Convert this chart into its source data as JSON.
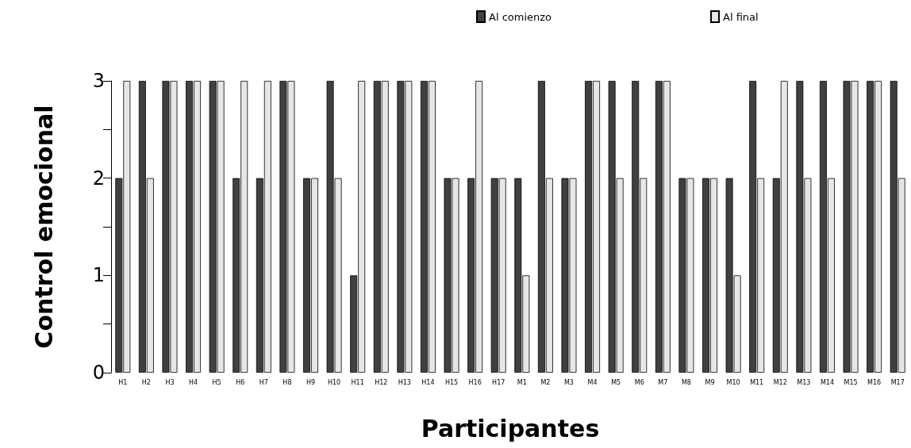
{
  "chart_data": {
    "type": "bar",
    "xlabel": "Participantes",
    "ylabel": "Control emocional",
    "categories": [
      "H1",
      "H2",
      "H3",
      "H4",
      "H5",
      "H6",
      "H7",
      "H8",
      "H9",
      "H10",
      "H11",
      "H12",
      "H13",
      "H14",
      "H15",
      "H16",
      "H17",
      "M1",
      "M2",
      "M3",
      "M4",
      "M5",
      "M6",
      "M7",
      "M8",
      "M9",
      "M10",
      "M11",
      "M12",
      "M13",
      "M14",
      "M15",
      "M16",
      "M17"
    ],
    "series": [
      {
        "name": "Al comienzo",
        "color": "#404040",
        "values": [
          2,
          3,
          3,
          3,
          3,
          2,
          2,
          3,
          2,
          3,
          1,
          3,
          3,
          3,
          2,
          2,
          2,
          2,
          3,
          2,
          3,
          3,
          3,
          3,
          2,
          2,
          2,
          3,
          2,
          3,
          3,
          3,
          3,
          3
        ]
      },
      {
        "name": "Al final",
        "color": "#e6e6e6",
        "values": [
          3,
          2,
          3,
          3,
          3,
          3,
          3,
          3,
          2,
          2,
          3,
          3,
          3,
          3,
          2,
          3,
          2,
          1,
          2,
          2,
          3,
          2,
          2,
          3,
          2,
          2,
          1,
          2,
          3,
          2,
          2,
          3,
          3,
          2
        ]
      }
    ],
    "ylim": [
      0,
      3
    ],
    "yticks": [
      0,
      {
        "value": 0.5,
        "label": null
      },
      1,
      {
        "value": 1.5,
        "label": null
      },
      2,
      {
        "value": 2.5,
        "label": null
      },
      3
    ],
    "grid": false,
    "legend": "top right"
  }
}
